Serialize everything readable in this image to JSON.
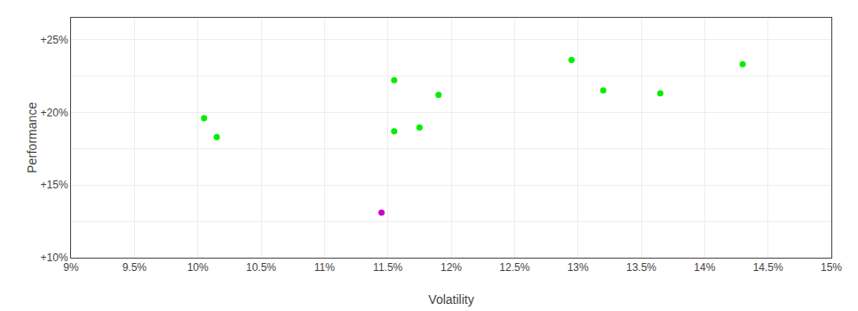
{
  "chart_data": {
    "type": "scatter",
    "xlabel": "Volatility",
    "ylabel": "Performance",
    "xlim": [
      0.09,
      0.15
    ],
    "ylim": [
      0.1,
      0.265
    ],
    "xticks": [
      {
        "value": 0.09,
        "label": "9%"
      },
      {
        "value": 0.095,
        "label": "9.5%"
      },
      {
        "value": 0.1,
        "label": "10%"
      },
      {
        "value": 0.105,
        "label": "10.5%"
      },
      {
        "value": 0.11,
        "label": "11%"
      },
      {
        "value": 0.115,
        "label": "11.5%"
      },
      {
        "value": 0.12,
        "label": "12%"
      },
      {
        "value": 0.125,
        "label": "12.5%"
      },
      {
        "value": 0.13,
        "label": "13%"
      },
      {
        "value": 0.135,
        "label": "13.5%"
      },
      {
        "value": 0.14,
        "label": "14%"
      },
      {
        "value": 0.145,
        "label": "14.5%"
      },
      {
        "value": 0.15,
        "label": "15%"
      }
    ],
    "yticks": [
      {
        "value": 0.1,
        "label": "+10%"
      },
      {
        "value": 0.125,
        "label": null
      },
      {
        "value": 0.15,
        "label": "+15%"
      },
      {
        "value": 0.175,
        "label": null
      },
      {
        "value": 0.2,
        "label": "+20%"
      },
      {
        "value": 0.225,
        "label": null
      },
      {
        "value": 0.25,
        "label": "+25%"
      }
    ],
    "grid": true,
    "series": [
      {
        "color": "#00ee00",
        "x": [
          0.1005,
          0.1015,
          0.1155,
          0.1155,
          0.1175,
          0.119,
          0.1295,
          0.132,
          0.1365,
          0.143
        ],
        "values": [
          0.196,
          0.183,
          0.222,
          0.187,
          0.1895,
          0.212,
          0.236,
          0.215,
          0.213,
          0.233
        ]
      },
      {
        "color": "#cc00cc",
        "x": [
          0.1145
        ],
        "values": [
          0.131
        ]
      }
    ]
  }
}
